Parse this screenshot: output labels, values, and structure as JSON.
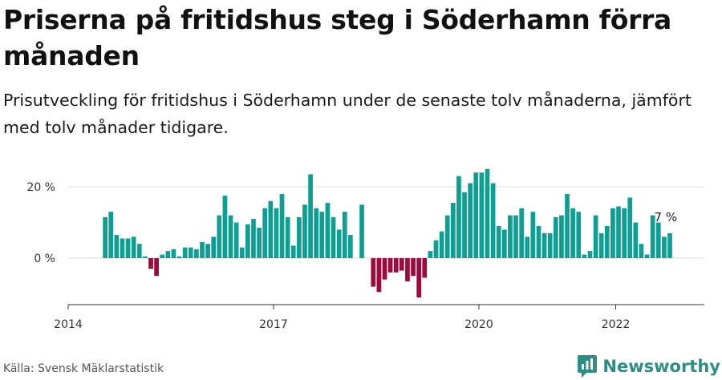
{
  "header": {
    "title": "Priserna på fritidshus steg i Söderhamn förra månaden",
    "subtitle": "Prisutveckling för fritidshus i Söderhamn under de senaste tolv månaderna, jämfört med tolv månader tidigare."
  },
  "footer": {
    "source": "Källa: Svensk Mäklarstatistik",
    "brand": "Newsworthy"
  },
  "colors": {
    "positive": "#0f9e92",
    "negative": "#9e0a3d",
    "grid": "#dddddd",
    "axis": "#333333",
    "brand": "#2b8f86"
  },
  "chart_data": {
    "type": "bar",
    "start": "2014-07",
    "x_ticks": [
      "2014",
      "2017",
      "2020",
      "2022"
    ],
    "y_ticks": [
      "0 %",
      "20 %"
    ],
    "ylim": [
      -12,
      25
    ],
    "grid": true,
    "end_label": "7 %",
    "values": [
      11.5,
      13,
      6.5,
      5.5,
      5.5,
      6,
      4,
      0.5,
      -3,
      -5,
      1,
      2,
      2.5,
      0.5,
      3,
      3,
      2.5,
      4.5,
      4,
      6,
      12,
      17.5,
      12,
      10,
      3,
      9.5,
      11,
      8.5,
      14,
      16,
      14,
      18,
      11.5,
      3.5,
      11.5,
      15,
      23.5,
      14,
      13,
      15.5,
      11.5,
      8,
      13,
      6.5,
      null,
      15,
      null,
      -8,
      -9.5,
      -6,
      -4,
      -4,
      -3.5,
      -6.5,
      -5,
      -11,
      -5.5,
      2,
      5,
      7.5,
      12,
      15.5,
      23,
      18.5,
      21,
      24,
      24,
      25,
      21,
      9,
      8,
      12,
      12,
      14,
      6,
      13,
      9,
      7,
      7,
      11.5,
      12,
      18,
      14,
      13,
      1,
      2,
      12,
      7,
      9,
      14,
      14.5,
      14,
      17,
      10,
      4,
      1,
      12,
      10,
      6,
      7
    ]
  }
}
